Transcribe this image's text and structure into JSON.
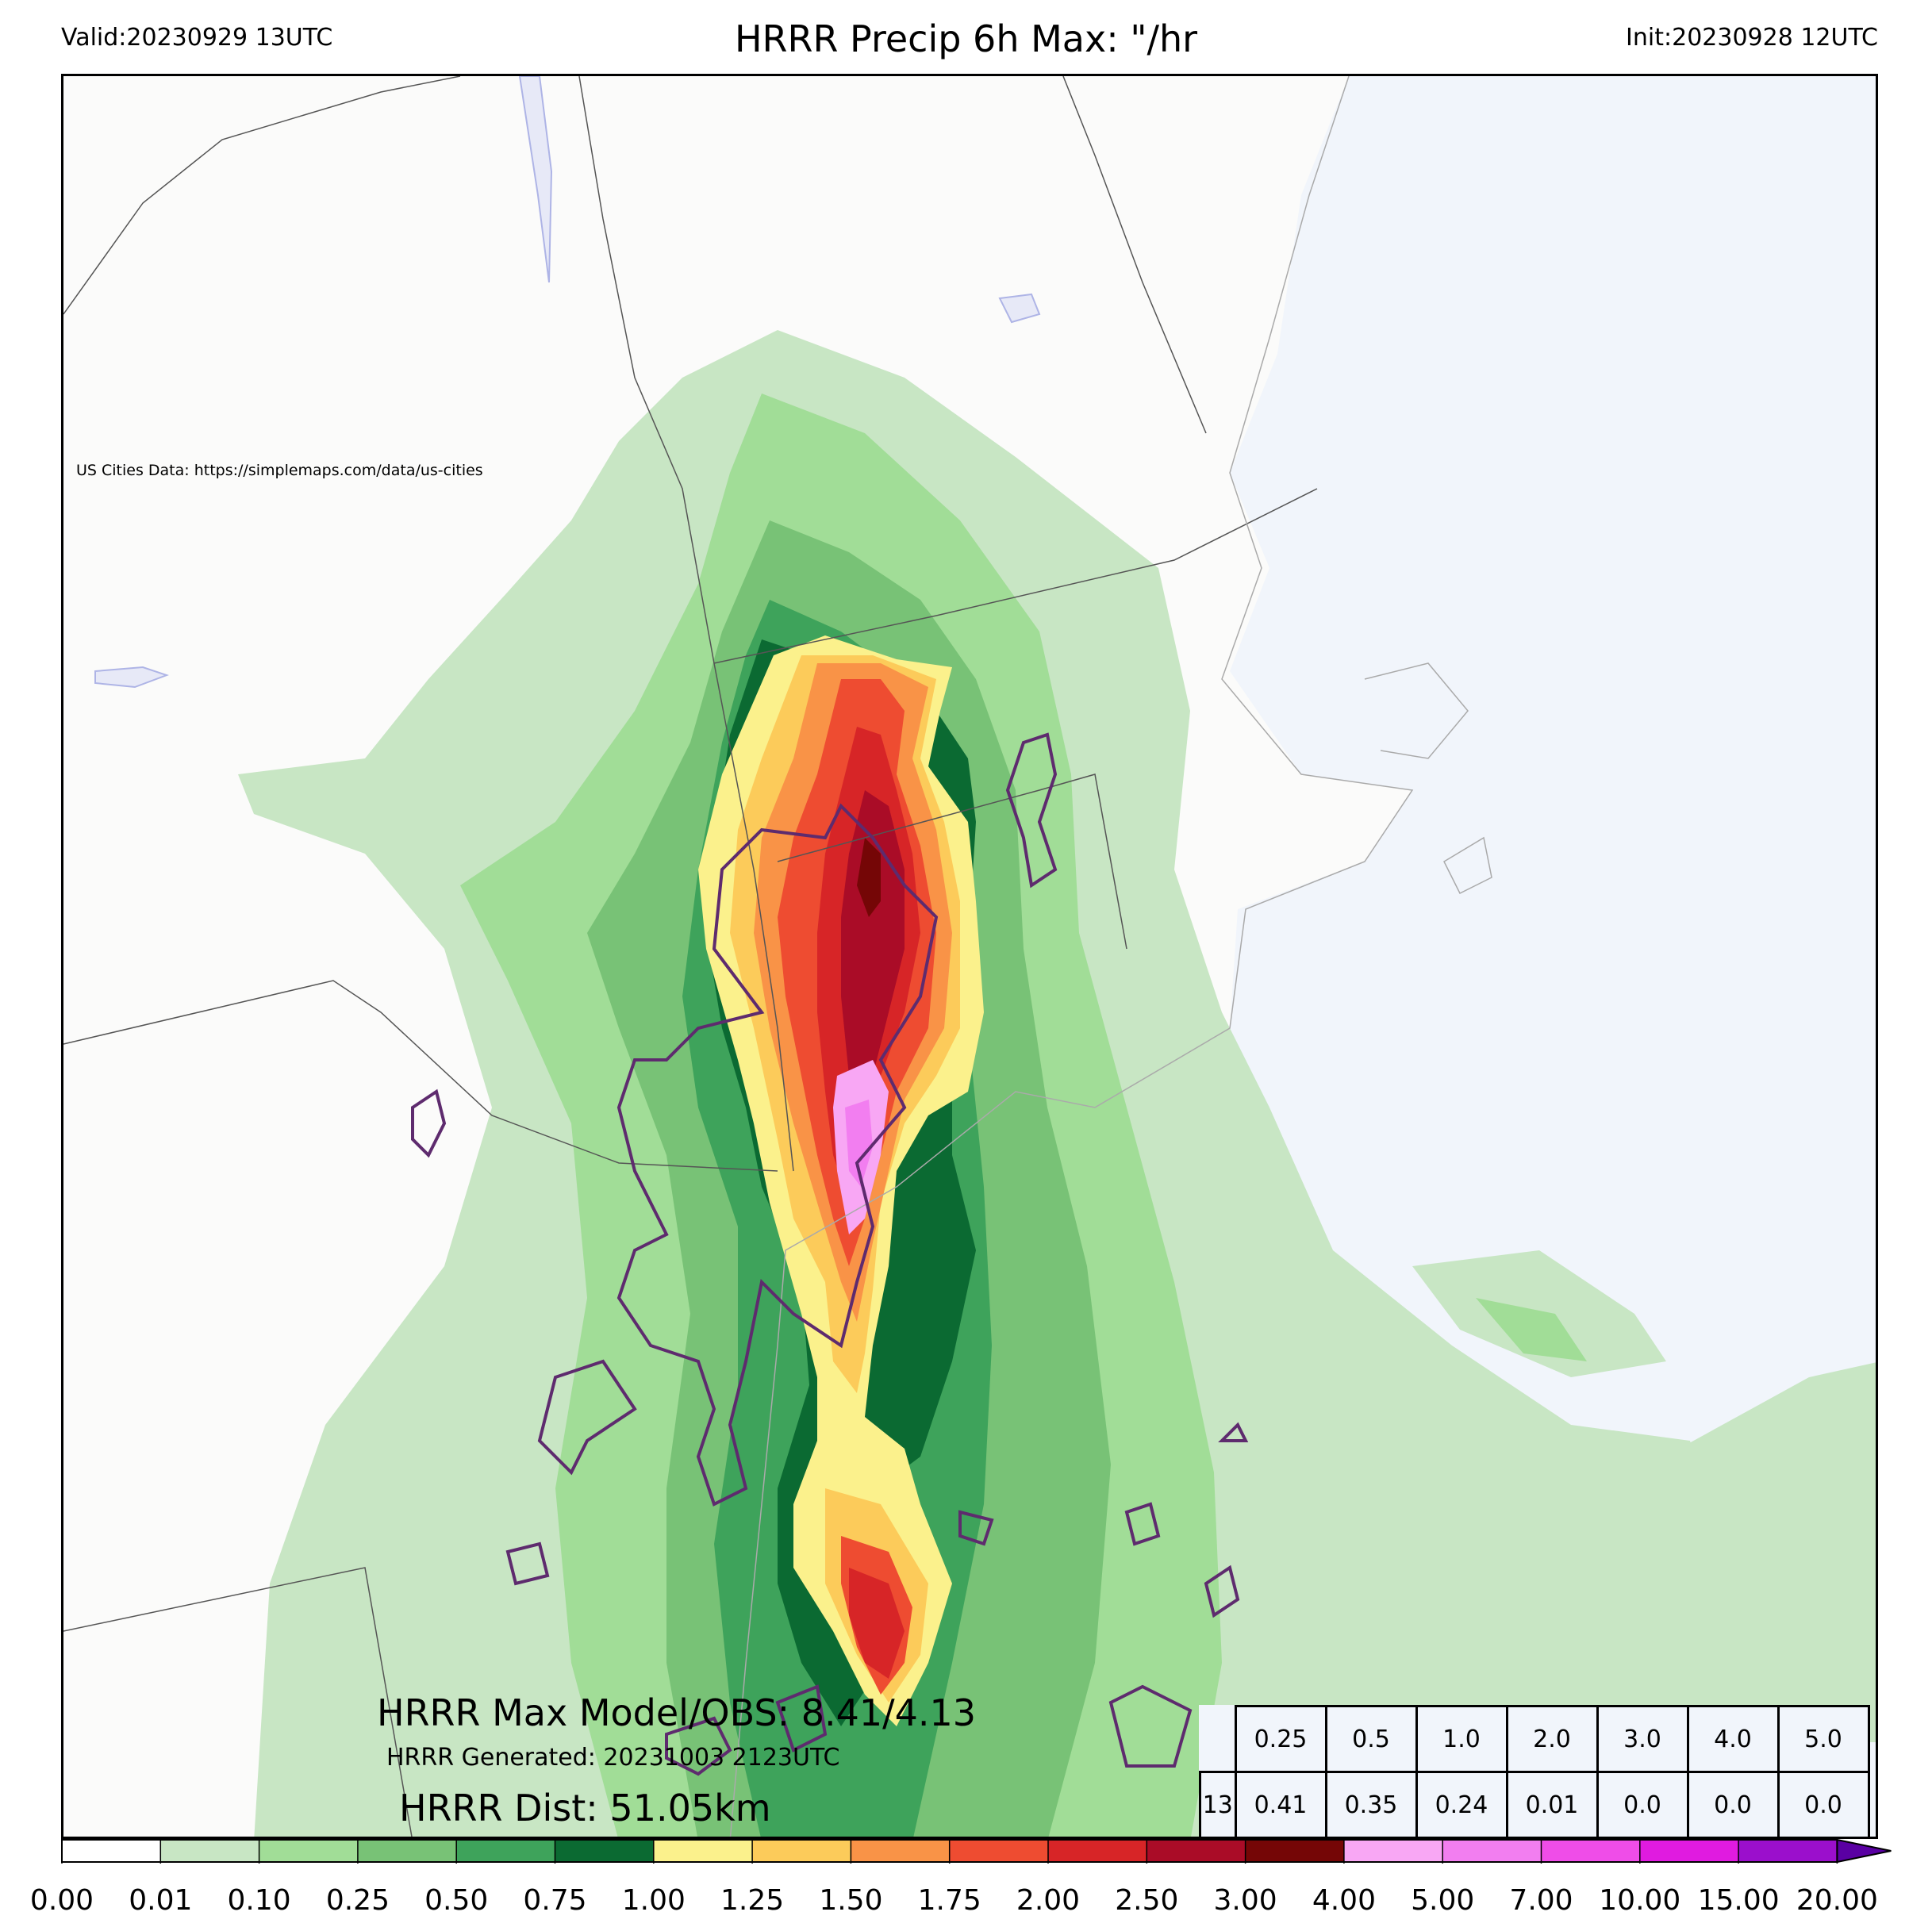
{
  "header": {
    "valid": "Valid:20230929 13UTC",
    "title": "HRRR Precip 6h Max: \"/hr",
    "init": "Init:20230928 12UTC"
  },
  "map": {
    "credit": "US Cities Data: https://simplemaps.com/data/us-cities",
    "colors": {
      "land": "#fbfbfa",
      "ocean": "#f1f5fb",
      "obs_contour": "#5e2b6e"
    }
  },
  "stats": {
    "max_model_obs": "HRRR Max Model/OBS: 8.41/4.13",
    "generated": "HRRR Generated: 20231003 2123UTC",
    "dist": "HRRR Dist: 51.05km"
  },
  "threshold_table": {
    "thresholds": [
      "0.25",
      "0.5",
      "1.0",
      "2.0",
      "3.0",
      "4.0",
      "5.0"
    ],
    "row_label": "13",
    "values": [
      "0.41",
      "0.35",
      "0.24",
      "0.01",
      "0.0",
      "0.0",
      "0.0"
    ]
  },
  "colorbar": {
    "ticks": [
      "0.00",
      "0.01",
      "0.10",
      "0.25",
      "0.50",
      "0.75",
      "1.00",
      "1.25",
      "1.50",
      "1.75",
      "2.00",
      "2.50",
      "3.00",
      "4.00",
      "5.00",
      "7.00",
      "10.00",
      "15.00",
      "20.00"
    ],
    "colors": [
      "#ffffff",
      "#c8e6c4",
      "#a1dd97",
      "#78c276",
      "#3ea35b",
      "#0b6a32",
      "#fbf18c",
      "#fccb5a",
      "#f99347",
      "#ee4c31",
      "#d72527",
      "#aa0c27",
      "#750606",
      "#f8a7f4",
      "#f27ef0",
      "#ef4de8",
      "#e01be0",
      "#9b0fcc",
      "#5a00a3"
    ]
  }
}
